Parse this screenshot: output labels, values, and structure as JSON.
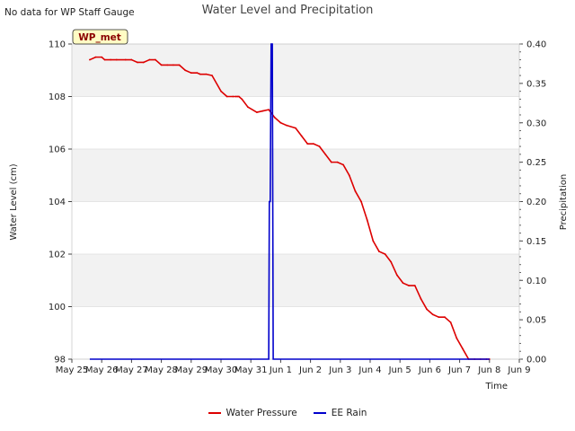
{
  "header": {
    "nodata_text": "No data for WP Staff Gauge",
    "title": "Water Level and Precipitation"
  },
  "badge": {
    "text": "WP_met"
  },
  "chart_data": {
    "type": "line",
    "title": "Water Level and Precipitation",
    "xlabel": "Time",
    "ylabel": "Water Level (cm)",
    "y2label": "Precipitation",
    "xlim": [
      0,
      15
    ],
    "x_ticks": [
      0,
      1,
      2,
      3,
      4,
      5,
      6,
      7,
      8,
      9,
      10,
      11,
      12,
      13,
      14,
      15
    ],
    "x_tick_labels": [
      "May 25",
      "May 26",
      "May 27",
      "May 28",
      "May 29",
      "May 30",
      "May 31",
      "Jun 1",
      "Jun 2",
      "Jun 3",
      "Jun 4",
      "Jun 5",
      "Jun 6",
      "Jun 7",
      "Jun 8",
      "Jun 9"
    ],
    "ylim": [
      98,
      110
    ],
    "y_ticks": [
      98,
      100,
      102,
      104,
      106,
      108,
      110
    ],
    "y2lim": [
      0,
      0.4
    ],
    "y2_ticks": [
      0.0,
      0.05,
      0.1,
      0.15,
      0.2,
      0.25,
      0.3,
      0.35,
      0.4
    ],
    "y2_tick_labels": [
      "0.00",
      "0.05",
      "0.10",
      "0.15",
      "0.20",
      "0.25",
      "0.30",
      "0.35",
      "0.40"
    ],
    "grid": true,
    "legend_placement": "bottom-center",
    "colors": {
      "water": "#dd0000",
      "rain": "#0000cc",
      "band": "#f2f2f2"
    },
    "series": [
      {
        "name": "Water Pressure",
        "axis": "left",
        "x": [
          0.6,
          0.8,
          1.0,
          1.1,
          1.3,
          1.5,
          1.8,
          2.0,
          2.2,
          2.4,
          2.6,
          2.8,
          3.0,
          3.2,
          3.4,
          3.6,
          3.8,
          4.0,
          4.2,
          4.3,
          4.5,
          4.7,
          5.0,
          5.2,
          5.4,
          5.5,
          5.55,
          5.6,
          5.7,
          5.9,
          6.2,
          6.4,
          6.6,
          6.8,
          7.0,
          7.2,
          7.5,
          7.7,
          7.9,
          8.1,
          8.3,
          8.5,
          8.7,
          8.9,
          9.1,
          9.3,
          9.5,
          9.7,
          9.9,
          10.1,
          10.3,
          10.5,
          10.7,
          10.9,
          11.1,
          11.3,
          11.5,
          11.7,
          11.9,
          12.1,
          12.3,
          12.5,
          12.7,
          12.9,
          13.1,
          13.3,
          13.5,
          13.7,
          13.9,
          14.0
        ],
        "values": [
          109.4,
          109.5,
          109.5,
          109.4,
          109.4,
          109.4,
          109.4,
          109.4,
          109.3,
          109.3,
          109.4,
          109.4,
          109.2,
          109.2,
          109.2,
          109.2,
          109.0,
          108.9,
          108.9,
          108.85,
          108.85,
          108.8,
          108.2,
          108.0,
          108.0,
          108.0,
          108.0,
          108.0,
          107.9,
          107.6,
          107.4,
          107.45,
          107.5,
          107.2,
          107.0,
          106.9,
          106.8,
          106.5,
          106.2,
          106.2,
          106.1,
          105.8,
          105.5,
          105.5,
          105.4,
          105.0,
          104.4,
          104.0,
          103.3,
          102.5,
          102.1,
          102.0,
          101.7,
          101.2,
          100.9,
          100.8,
          100.8,
          100.3,
          99.9,
          99.7,
          99.6,
          99.6,
          99.4,
          98.8,
          98.4,
          98.0,
          98.0,
          98.0,
          98.0,
          98.0
        ]
      },
      {
        "name": "EE Rain",
        "axis": "right",
        "x": [
          0.6,
          6.6,
          6.62,
          6.65,
          6.68,
          6.72,
          6.75,
          6.78,
          14.0
        ],
        "values": [
          0,
          0,
          0.2,
          0.2,
          0.4,
          0.4,
          0,
          0,
          0
        ]
      }
    ]
  }
}
